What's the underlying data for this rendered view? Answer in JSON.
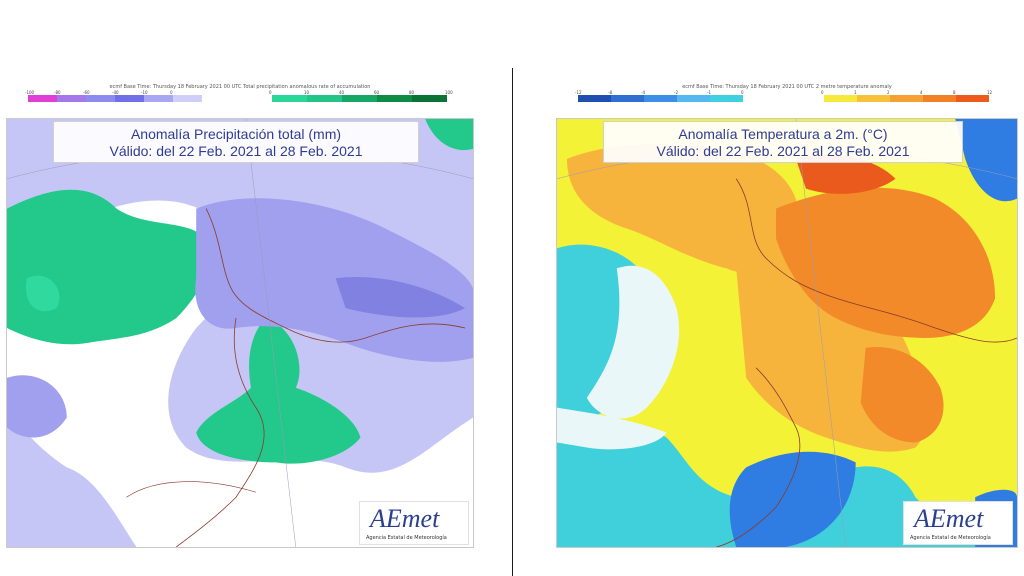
{
  "panels": {
    "precipitation": {
      "legend_caption": "ecmf  Base Time: Thursday 18 February 2021 00 UTC  Total precipitation anomalous rate of accumulation",
      "legend_negative": {
        "colors": [
          "#e23fd6",
          "#a478ea",
          "#8c8cf0",
          "#6f6fe6",
          "#a7a7f4",
          "#cfcffa"
        ],
        "ticks": [
          "-100",
          "-80",
          "-60",
          "-40",
          "-10",
          "0"
        ]
      },
      "legend_positive": {
        "colors": [
          "#2ad79b",
          "#22c487",
          "#16a764",
          "#0e8c45",
          "#0a7335"
        ],
        "ticks": [
          "0",
          "10",
          "40",
          "60",
          "80",
          "100"
        ]
      },
      "title": "Anomalía Precipitación total (mm)",
      "subtitle": "Válido: del 22 Feb. 2021 al 28 Feb. 2021",
      "colors": {
        "base": "#c6c6f6",
        "negative": "#a0a0ee",
        "strong_negative": "#8181e2",
        "neutral": "#ffffff",
        "positive": "#22c98b"
      }
    },
    "temperature": {
      "legend_caption": "ecmf  Base Time: Thursday 18 February 2021 00 UTC  2 metre temperature anomaly",
      "legend_negative": {
        "colors": [
          "#1f4fb0",
          "#2e6fd0",
          "#3c8ee6",
          "#55b8f0",
          "#3fd1e0"
        ],
        "ticks": [
          "-12",
          "-8",
          "-4",
          "-2",
          "-1",
          "0"
        ]
      },
      "legend_positive": {
        "colors": [
          "#f7e93a",
          "#f7c23a",
          "#f5a232",
          "#f28126",
          "#ee5a1c"
        ],
        "ticks": [
          "0",
          "1",
          "2",
          "4",
          "8",
          "12"
        ]
      },
      "title": "Anomalía Temperatura a 2m. (°C)",
      "subtitle": "Válido: del 22 Feb. 2021 al 28 Feb. 2021",
      "colors": {
        "cyan": "#3fd0dc",
        "blue": "#2f7de2",
        "light": "#eaf7f9",
        "yellow": "#f3f236",
        "light_orange": "#f6b43c",
        "orange": "#f28a2a",
        "red": "#ea5a1d"
      }
    }
  },
  "logo": {
    "word": "AEmet",
    "subtitle": "Agencia Estatal de Meteorología"
  }
}
